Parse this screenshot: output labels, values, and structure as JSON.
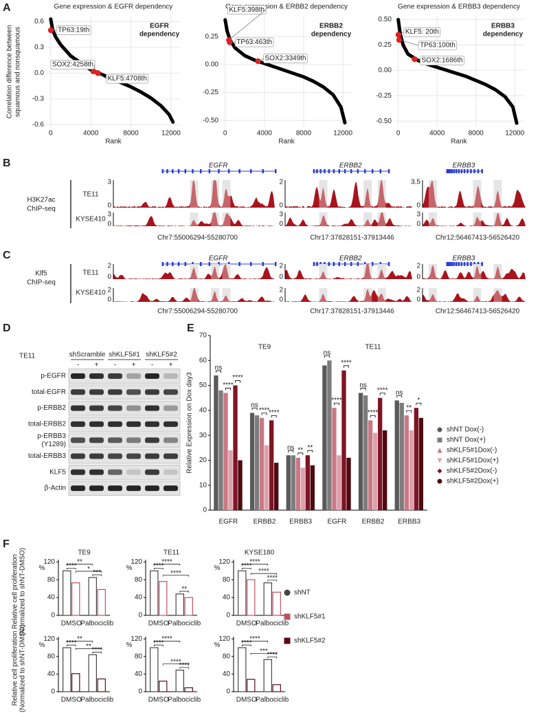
{
  "panel_labels": [
    "A",
    "B",
    "C",
    "D",
    "E",
    "F"
  ],
  "chart_data": [
    {
      "type": "line",
      "title": "Gene expression & EGFR dependency",
      "inset_label": [
        "EGFR",
        "dependency"
      ],
      "ylabel": [
        "Correlation difference between",
        "squamous and nonsquamous"
      ],
      "xlabel": "Rank",
      "x": [
        0,
        200,
        500,
        1000,
        2000,
        3000,
        4000,
        5000,
        6000,
        7000,
        8000,
        9000,
        10000,
        11000,
        11800,
        12200
      ],
      "values": [
        0.63,
        0.5,
        0.42,
        0.33,
        0.2,
        0.12,
        0.04,
        -0.01,
        -0.06,
        -0.11,
        -0.16,
        -0.22,
        -0.29,
        -0.38,
        -0.48,
        -0.57
      ],
      "color": "#000000",
      "xlim": [
        -400,
        12900
      ],
      "xticks": [
        0,
        4000,
        8000,
        12000
      ],
      "ylim": [
        -0.63,
        0.66
      ],
      "yticks": [
        -0.6,
        -0.3,
        {
          "value": 0,
          "label": "0.0"
        },
        0.3,
        0.6
      ],
      "grid": true,
      "highlights": [
        {
          "label": "TP63:19th",
          "x": 19,
          "y": 0.5,
          "color": "#e02020"
        },
        {
          "label": "SOX2:4258th",
          "x": 4258,
          "y": 0.02,
          "color": "#e02020"
        },
        {
          "label": "KLF5:4708th",
          "x": 4708,
          "y": 0.0,
          "color": "#e02020"
        }
      ]
    },
    {
      "type": "line",
      "title": "Gene expression & ERBB2 dependency",
      "inset_label": [
        "ERBB2",
        "dependency"
      ],
      "xlabel": "Rank",
      "x": [
        0,
        200,
        500,
        1000,
        2000,
        3000,
        4000,
        5000,
        6000,
        7000,
        8000,
        9000,
        10000,
        11000,
        11800,
        12200
      ],
      "values": [
        0.4,
        0.3,
        0.22,
        0.15,
        0.08,
        0.04,
        0.01,
        -0.02,
        -0.05,
        -0.08,
        -0.11,
        -0.15,
        -0.2,
        -0.27,
        -0.38,
        -0.52
      ],
      "color": "#000000",
      "xlim": [
        -400,
        12900
      ],
      "xticks": [
        0,
        4000,
        8000,
        12000
      ],
      "ylim": [
        -0.56,
        0.43
      ],
      "yticks": [
        {
          "value": -0.5,
          "label": "-0.50"
        },
        -0.25,
        {
          "value": 0,
          "label": "0.00"
        },
        0.25
      ],
      "grid": true,
      "highlights": [
        {
          "label": "KLF5:398th",
          "x": 398,
          "y": 0.22,
          "color": "#e02020"
        },
        {
          "label": "TP63:463th",
          "x": 463,
          "y": 0.2,
          "color": "#e02020"
        },
        {
          "label": "SOX2:3349th",
          "x": 3349,
          "y": 0.03,
          "color": "#e02020"
        }
      ]
    },
    {
      "type": "line",
      "title": "Gene expression & ERBB3 dependency",
      "inset_label": [
        "ERBB3",
        "dependency"
      ],
      "xlabel": "Rank",
      "x": [
        0,
        200,
        500,
        1000,
        2000,
        3000,
        4000,
        5000,
        6000,
        7000,
        8000,
        9000,
        10000,
        11000,
        11800,
        12200
      ],
      "values": [
        0.5,
        0.36,
        0.25,
        0.16,
        0.1,
        0.06,
        0.03,
        0.0,
        -0.03,
        -0.06,
        -0.1,
        -0.14,
        -0.19,
        -0.26,
        -0.36,
        -0.52
      ],
      "color": "#000000",
      "xlim": [
        -400,
        12900
      ],
      "xticks": [
        0,
        4000,
        8000,
        12000
      ],
      "ylim": [
        -0.56,
        0.53
      ],
      "yticks": [
        {
          "value": -0.5,
          "label": "-0.50"
        },
        -0.25,
        {
          "value": 0,
          "label": "0.00"
        },
        0.25,
        {
          "value": 0.5,
          "label": "0.50"
        }
      ],
      "grid": true,
      "highlights": [
        {
          "label": "KLF5: 20th",
          "x": 20,
          "y": 0.35,
          "color": "#e02020"
        },
        {
          "label": "TP63:100th",
          "x": 100,
          "y": 0.3,
          "color": "#e02020"
        },
        {
          "label": "SOX2:1686th",
          "x": 1686,
          "y": 0.11,
          "color": "#e02020"
        }
      ]
    },
    {
      "type": "grouped_bar",
      "ylabel": "Relative Expression on Dox day3",
      "group_titles": [
        "TE9",
        "TE11"
      ],
      "categories": [
        "EGFR",
        "ERBB2",
        "ERBB3",
        "EGFR",
        "ERBB2",
        "ERBB3"
      ],
      "series": [
        {
          "name": "shNT Dox(-)",
          "color": "#5a5a5a",
          "marker": "circle",
          "values": [
            54,
            39,
            22,
            58,
            47,
            44
          ]
        },
        {
          "name": "shNT Dox(+)",
          "color": "#7c7c7c",
          "marker": "square",
          "values": [
            48,
            38,
            22,
            60,
            46,
            43
          ]
        },
        {
          "name": "shKLF5#1Dox(-)",
          "color": "#c97884",
          "marker": "triangle-up",
          "values": [
            47,
            37,
            21,
            41,
            36,
            38
          ]
        },
        {
          "name": "shKLF5#1Dox(+)",
          "color": "#dba1aa",
          "marker": "triangle-down",
          "values": [
            24,
            26,
            17,
            22,
            31,
            32
          ]
        },
        {
          "name": "shKLF5#2Dox(-)",
          "color": "#7e1424",
          "marker": "diamond",
          "values": [
            50,
            36,
            22,
            56,
            45,
            41
          ]
        },
        {
          "name": "shKLF5#2Dox(+)",
          "color": "#4e0a10",
          "marker": "circle",
          "values": [
            20,
            19,
            18,
            21,
            32,
            37
          ]
        }
      ],
      "ylim": [
        0,
        70
      ],
      "yticks": [
        0,
        10,
        20,
        30,
        40,
        50,
        60,
        70
      ],
      "significance": [
        [
          "ns",
          "****",
          "****"
        ],
        [
          "ns",
          "****",
          "****"
        ],
        [
          "ns",
          "**",
          "**"
        ],
        [
          "ns",
          "****",
          "****"
        ],
        [
          "ns",
          "****",
          "****"
        ],
        [
          "ns",
          "**",
          "*"
        ]
      ],
      "legend": "right"
    },
    {
      "type": "bar",
      "title": "TE9",
      "ylabel": [
        "Relative cell proliferation",
        "(Normalized to shNT-DMSO)"
      ],
      "unit": "%",
      "categories": [
        "DMSO",
        "Palbociclib"
      ],
      "series": [
        {
          "name": "shNT",
          "color": "#444444",
          "values": [
            100,
            85
          ]
        },
        {
          "name": "shKLF5#1",
          "color": "#c0505e",
          "values": [
            73,
            58
          ]
        }
      ],
      "ylim": [
        0,
        125
      ],
      "yticks": [
        0,
        40,
        80,
        120
      ],
      "significance": [
        "****",
        "**",
        "*",
        "***"
      ]
    },
    {
      "type": "bar",
      "title": "TE11",
      "unit": "%",
      "categories": [
        "DMSO",
        "Palbociclib"
      ],
      "series": [
        {
          "name": "shNT",
          "color": "#444444",
          "values": [
            100,
            48
          ]
        },
        {
          "name": "shKLF5#1",
          "color": "#c0505e",
          "values": [
            76,
            40
          ]
        }
      ],
      "ylim": [
        0,
        125
      ],
      "yticks": [
        0,
        40,
        80,
        120
      ],
      "significance": [
        "****",
        "****",
        "****",
        "**"
      ]
    },
    {
      "type": "bar",
      "title": "KYSE180",
      "unit": "%",
      "categories": [
        "DMSO",
        "Palbociclib"
      ],
      "series": [
        {
          "name": "shNT",
          "color": "#444444",
          "values": [
            100,
            73
          ]
        },
        {
          "name": "shKLF5#1",
          "color": "#c0505e",
          "values": [
            80,
            52
          ]
        }
      ],
      "ylim": [
        0,
        125
      ],
      "yticks": [
        0,
        40,
        80,
        120
      ],
      "significance": [
        "****",
        "****",
        "****",
        "****"
      ]
    },
    {
      "type": "bar",
      "ylabel": [
        "Relative cell proliferation",
        "(Normalized to shNT-DMSO)"
      ],
      "unit": "%",
      "categories": [
        "DMSO",
        "Palbociclib"
      ],
      "series": [
        {
          "name": "shNT",
          "color": "#444444",
          "values": [
            100,
            84
          ]
        },
        {
          "name": "shKLF5#2",
          "color": "#5a0a10",
          "values": [
            41,
            29
          ]
        }
      ],
      "ylim": [
        0,
        125
      ],
      "yticks": [
        0,
        40,
        80,
        120
      ],
      "significance": [
        "****",
        "**",
        "**",
        "****"
      ]
    },
    {
      "type": "bar",
      "unit": "%",
      "categories": [
        "DMSO",
        "Palbociclib"
      ],
      "series": [
        {
          "name": "shNT",
          "color": "#444444",
          "values": [
            100,
            49
          ]
        },
        {
          "name": "shKLF5#2",
          "color": "#5a0a10",
          "values": [
            24,
            9
          ]
        }
      ],
      "ylim": [
        0,
        125
      ],
      "yticks": [
        0,
        40,
        80,
        120
      ],
      "significance": [
        "****",
        "****",
        "****",
        "****"
      ]
    },
    {
      "type": "bar",
      "unit": "%",
      "categories": [
        "DMSO",
        "Palbociclib"
      ],
      "series": [
        {
          "name": "shNT",
          "color": "#444444",
          "values": [
            100,
            73
          ]
        },
        {
          "name": "shKLF5#2",
          "color": "#5a0a10",
          "values": [
            28,
            16
          ]
        }
      ],
      "ylim": [
        0,
        125
      ],
      "yticks": [
        0,
        40,
        80,
        120
      ],
      "significance": [
        "****",
        "****",
        "***",
        "****"
      ]
    }
  ],
  "chip_seq": [
    {
      "assay": [
        "H3K27ac",
        "ChIP-seq"
      ],
      "samples": [
        "TE11",
        "KYSE410"
      ],
      "loci": [
        {
          "gene": "EGFR",
          "coordinates": "Chr7:55006294-55280700",
          "scales": [
            [
              "3",
              "0"
            ],
            [
              "3",
              "0"
            ]
          ]
        },
        {
          "gene": "ERBB2",
          "coordinates": "Chr17:37828151-37913446",
          "scales": [
            [
              "2",
              "0"
            ],
            [
              "3",
              "0"
            ]
          ]
        },
        {
          "gene": "ERBB3",
          "coordinates": "Chr12:56467413-56526420",
          "scales": [
            [
              "3.5",
              "0"
            ],
            [
              "3",
              "0"
            ]
          ]
        }
      ]
    },
    {
      "assay": [
        "Klf5",
        "ChIP-seq"
      ],
      "samples": [
        "TE11",
        "KYSE410"
      ],
      "loci": [
        {
          "gene": "EGFR",
          "coordinates": "Chr7:55006294-55280700",
          "scales": [
            [
              "2",
              "0"
            ],
            [
              "2",
              "0"
            ]
          ]
        },
        {
          "gene": "ERBB2",
          "coordinates": "Chr17:37828151-37913446",
          "scales": [
            [
              "2",
              "0"
            ],
            [
              "2",
              "0"
            ]
          ]
        },
        {
          "gene": "ERBB3",
          "coordinates": "Chr12:56467413-56526420",
          "scales": [
            [
              "2",
              "0"
            ],
            [
              "2",
              "0"
            ]
          ]
        }
      ]
    }
  ],
  "western_blot": {
    "cell_line": "TE11",
    "groups": [
      "shScramble",
      "shKLF5#1",
      "shKLF5#2"
    ],
    "dox": [
      "-",
      "+",
      "-",
      "+",
      "-",
      "+"
    ],
    "rows": [
      [
        "p-EGFR"
      ],
      [
        "total-EGFR"
      ],
      [
        "p-ERBB2"
      ],
      [
        "total-ERBB2"
      ],
      [
        "p-ERBB3",
        "(Y1289)"
      ],
      [
        "total-ERBB3"
      ],
      [
        "KLF5"
      ],
      [
        "β-Actin"
      ]
    ]
  }
}
